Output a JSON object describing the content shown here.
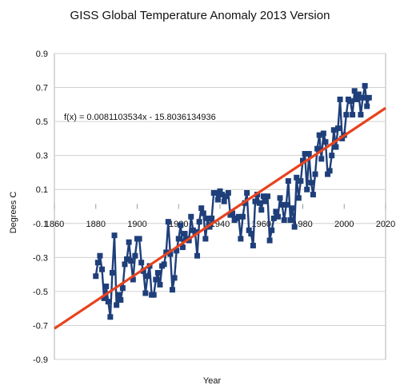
{
  "chart_data": {
    "type": "scatter",
    "title": "GISS Global Temperature Anomaly 2013 Version",
    "xlabel": "Year",
    "ylabel": "Degrees C",
    "xlim": [
      1860,
      2020
    ],
    "ylim": [
      -0.9,
      0.9
    ],
    "x_ticks": [
      1860,
      1880,
      1900,
      1920,
      1940,
      1960,
      1980,
      2000,
      2020
    ],
    "y_ticks": [
      -0.9,
      -0.7,
      -0.5,
      -0.3,
      -0.1,
      0.1,
      0.3,
      0.5,
      0.7,
      0.9
    ],
    "grid": true,
    "colors": {
      "series": "#1f3f7a",
      "trendline": "#e8431d",
      "grid": "#d0d0d0"
    },
    "series": [
      {
        "x": [
          1880,
          1881,
          1882,
          1883,
          1884,
          1885,
          1886,
          1887,
          1888,
          1889,
          1890,
          1891,
          1892,
          1893,
          1894,
          1895,
          1896,
          1897,
          1898,
          1899,
          1900,
          1901,
          1902,
          1903,
          1904,
          1905,
          1906,
          1907,
          1908,
          1909,
          1910,
          1911,
          1912,
          1913,
          1914,
          1915,
          1916,
          1917,
          1918,
          1919,
          1920,
          1921,
          1922,
          1923,
          1924,
          1925,
          1926,
          1927,
          1928,
          1929,
          1930,
          1931,
          1932,
          1933,
          1934,
          1935,
          1936,
          1937,
          1938,
          1939,
          1940,
          1941,
          1942,
          1943,
          1944,
          1945,
          1946,
          1947,
          1948,
          1949,
          1950,
          1951,
          1952,
          1953,
          1954,
          1955,
          1956,
          1957,
          1958,
          1959,
          1960,
          1961,
          1962,
          1963,
          1964,
          1965,
          1966,
          1967,
          1968,
          1969,
          1970,
          1971,
          1972,
          1973,
          1974,
          1975,
          1976,
          1977,
          1978,
          1979,
          1980,
          1981,
          1982,
          1983,
          1984,
          1985,
          1986,
          1987,
          1988,
          1989,
          1990,
          1991,
          1992,
          1993,
          1994,
          1995,
          1996,
          1997,
          1998,
          1999,
          2000,
          2001,
          2002,
          2003,
          2004,
          2005,
          2006,
          2007,
          2008,
          2009,
          2010,
          2011,
          2012
        ],
        "y": [
          -0.41,
          -0.33,
          -0.29,
          -0.37,
          -0.54,
          -0.47,
          -0.56,
          -0.65,
          -0.39,
          -0.17,
          -0.58,
          -0.52,
          -0.55,
          -0.48,
          -0.34,
          -0.31,
          -0.21,
          -0.32,
          -0.43,
          -0.29,
          -0.19,
          -0.19,
          -0.33,
          -0.38,
          -0.51,
          -0.41,
          -0.35,
          -0.52,
          -0.52,
          -0.43,
          -0.39,
          -0.46,
          -0.35,
          -0.34,
          -0.27,
          -0.09,
          -0.28,
          -0.49,
          -0.42,
          -0.26,
          -0.19,
          -0.11,
          -0.24,
          -0.16,
          -0.19,
          -0.2,
          -0.06,
          -0.14,
          -0.15,
          -0.29,
          -0.09,
          -0.01,
          -0.04,
          -0.19,
          -0.07,
          -0.12,
          -0.07,
          0.08,
          0.08,
          0.04,
          0.09,
          0.07,
          0.03,
          0.06,
          0.08,
          -0.05,
          -0.04,
          -0.08,
          -0.07,
          -0.06,
          -0.19,
          -0.06,
          0.02,
          0.08,
          -0.14,
          -0.16,
          -0.23,
          0.03,
          0.07,
          0.02,
          -0.02,
          0.06,
          0.03,
          0.06,
          -0.2,
          -0.14,
          -0.07,
          -0.03,
          -0.06,
          0.05,
          0.01,
          -0.08,
          0.01,
          0.15,
          -0.08,
          -0.01,
          -0.12,
          0.17,
          0.05,
          0.15,
          0.27,
          0.31,
          0.1,
          0.31,
          0.14,
          0.07,
          0.19,
          0.34,
          0.42,
          0.28,
          0.43,
          0.38,
          0.19,
          0.21,
          0.3,
          0.45,
          0.35,
          0.46,
          0.63,
          0.4,
          0.42,
          0.54,
          0.63,
          0.62,
          0.54,
          0.68,
          0.63,
          0.66,
          0.54,
          0.64,
          0.71,
          0.59,
          0.64
        ]
      }
    ],
    "trendline": {
      "label": "f(x) = 0.0081103534x - 15.8036134936",
      "slope": 0.0081103534,
      "intercept": -15.8036134936
    }
  }
}
